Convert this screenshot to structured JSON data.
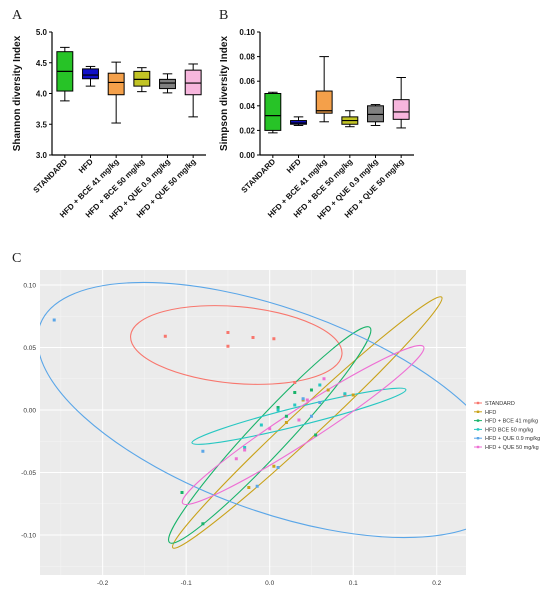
{
  "chart_data": [
    {
      "panel": "A",
      "type": "boxplot",
      "ylabel": "Shannon diversity Index",
      "ylim": [
        3.0,
        5.0
      ],
      "yticks": [
        "3.0",
        "3.5",
        "4.0",
        "4.5",
        "5.0"
      ],
      "yticks_values": [
        3.0,
        3.5,
        4.0,
        4.5,
        5.0
      ],
      "categories": [
        "STANDARD",
        "HFD",
        "HFD + BCE 41 mg/kg",
        "HFD + BCE 50 mg/kg",
        "HFD + QUE 0.9 mg/kg",
        "HFD + QUE 50 mg/kg"
      ],
      "boxes": [
        {
          "min": 3.88,
          "q1": 4.04,
          "median": 4.36,
          "q3": 4.68,
          "max": 4.75,
          "color": "#27c327"
        },
        {
          "min": 4.12,
          "q1": 4.24,
          "median": 4.3,
          "q3": 4.4,
          "max": 4.44,
          "color": "#1010c8"
        },
        {
          "min": 3.52,
          "q1": 3.98,
          "median": 4.18,
          "q3": 4.33,
          "max": 4.51,
          "color": "#f4a04a"
        },
        {
          "min": 4.03,
          "q1": 4.12,
          "median": 4.23,
          "q3": 4.36,
          "max": 4.42,
          "color": "#c2c425"
        },
        {
          "min": 4.01,
          "q1": 4.08,
          "median": 4.17,
          "q3": 4.23,
          "max": 4.32,
          "color": "#808080"
        },
        {
          "min": 3.62,
          "q1": 3.98,
          "median": 4.17,
          "q3": 4.38,
          "max": 4.48,
          "color": "#f7b6dd"
        }
      ]
    },
    {
      "panel": "B",
      "type": "boxplot",
      "ylabel": "Simpson diversity Index",
      "ylim": [
        0.0,
        0.1
      ],
      "yticks": [
        "0.00",
        "0.02",
        "0.04",
        "0.06",
        "0.08",
        "0.10"
      ],
      "yticks_values": [
        0.0,
        0.02,
        0.04,
        0.06,
        0.08,
        0.1
      ],
      "categories": [
        "STANDARD",
        "HFD",
        "HFD + BCE 41 mg/kg",
        "HFD + BCE 50 mg/kg",
        "HFD + QUE 0.9 mg/kg",
        "HFD + QUE 50 mg/kg"
      ],
      "boxes": [
        {
          "min": 0.018,
          "q1": 0.02,
          "median": 0.032,
          "q3": 0.05,
          "max": 0.051,
          "color": "#27c327"
        },
        {
          "min": 0.024,
          "q1": 0.025,
          "median": 0.026,
          "q3": 0.028,
          "max": 0.031,
          "color": "#1010c8"
        },
        {
          "min": 0.027,
          "q1": 0.034,
          "median": 0.036,
          "q3": 0.052,
          "max": 0.08,
          "color": "#f4a04a"
        },
        {
          "min": 0.023,
          "q1": 0.025,
          "median": 0.028,
          "q3": 0.031,
          "max": 0.036,
          "color": "#c2c425"
        },
        {
          "min": 0.024,
          "q1": 0.027,
          "median": 0.033,
          "q3": 0.04,
          "max": 0.041,
          "color": "#808080"
        },
        {
          "min": 0.022,
          "q1": 0.029,
          "median": 0.035,
          "q3": 0.045,
          "max": 0.063,
          "color": "#f7b6dd"
        }
      ]
    },
    {
      "panel": "C",
      "type": "scatter",
      "xlim": [
        -0.275,
        0.235
      ],
      "ylim": [
        -0.132,
        0.112
      ],
      "xticks": [
        "-0.2",
        "-0.1",
        "0.0",
        "0.1",
        "0.2"
      ],
      "xticks_values": [
        -0.2,
        -0.1,
        0.0,
        0.1,
        0.2
      ],
      "yticks": [
        "-0.10",
        "-0.05",
        "0.00",
        "0.05",
        "0.10"
      ],
      "yticks_values": [
        -0.1,
        -0.05,
        0.0,
        0.05,
        0.1
      ],
      "grid": true,
      "legend_position": "right",
      "series": [
        {
          "name": "STANDARD",
          "color": "#f8766d",
          "points": [
            [
              -0.125,
              0.059
            ],
            [
              -0.05,
              0.062
            ],
            [
              -0.05,
              0.051
            ],
            [
              -0.02,
              0.058
            ],
            [
              0.005,
              0.057
            ],
            [
              0.03,
              0.022
            ],
            [
              0.09,
              0.012
            ]
          ],
          "ellipse": {
            "cx": -0.04,
            "cy": 0.052,
            "rx": 0.127,
            "ry": 0.046,
            "angle": -5
          }
        },
        {
          "name": "HFD",
          "color": "#c9a21a",
          "points": [
            [
              -0.025,
              -0.062
            ],
            [
              0.005,
              -0.045
            ],
            [
              0.02,
              -0.01
            ],
            [
              0.04,
              0.008
            ],
            [
              0.07,
              0.016
            ],
            [
              0.1,
              0.012
            ]
          ],
          "ellipse": {
            "cx": 0.045,
            "cy": -0.01,
            "rx": 0.22,
            "ry": 0.017,
            "angle": 43
          }
        },
        {
          "name": "HFD + BCE 41 mg/kg",
          "color": "#19b36a",
          "points": [
            [
              -0.08,
              -0.091
            ],
            [
              -0.105,
              -0.066
            ],
            [
              0.01,
              0.002
            ],
            [
              0.02,
              -0.005
            ],
            [
              0.03,
              0.014
            ],
            [
              0.05,
              0.016
            ],
            [
              0.055,
              -0.02
            ]
          ],
          "ellipse": {
            "cx": 0.0,
            "cy": -0.02,
            "rx": 0.176,
            "ry": 0.022,
            "angle": 47
          }
        },
        {
          "name": "HFD BCE 50 mg/kg",
          "color": "#27c7c2",
          "points": [
            [
              -0.03,
              -0.03
            ],
            [
              -0.01,
              -0.012
            ],
            [
              0.01,
              0.0
            ],
            [
              0.03,
              0.004
            ],
            [
              0.06,
              0.02
            ],
            [
              0.09,
              0.013
            ]
          ],
          "ellipse": {
            "cx": 0.035,
            "cy": -0.005,
            "rx": 0.132,
            "ry": 0.011,
            "angle": 14
          }
        },
        {
          "name": "HFD + QUE 0.9 mg/kg",
          "color": "#5aa6e8",
          "points": [
            [
              -0.258,
              0.072
            ],
            [
              -0.08,
              -0.033
            ],
            [
              -0.015,
              -0.061
            ],
            [
              0.01,
              -0.046
            ],
            [
              0.04,
              0.009
            ],
            [
              0.06,
              0.006
            ],
            [
              0.05,
              -0.005
            ]
          ],
          "ellipse": {
            "cx": 0.005,
            "cy": 0.0,
            "rx": 0.298,
            "ry": 0.121,
            "angle": -20
          }
        },
        {
          "name": "HFD + QUE 50 mg/kg",
          "color": "#ee6fd4",
          "points": [
            [
              -0.04,
              -0.039
            ],
            [
              -0.03,
              -0.032
            ],
            [
              0.0,
              -0.015
            ],
            [
              0.035,
              -0.008
            ],
            [
              0.045,
              0.008
            ],
            [
              0.065,
              0.025
            ]
          ],
          "ellipse": {
            "cx": 0.04,
            "cy": -0.012,
            "rx": 0.172,
            "ry": 0.02,
            "angle": 33
          }
        }
      ]
    }
  ]
}
